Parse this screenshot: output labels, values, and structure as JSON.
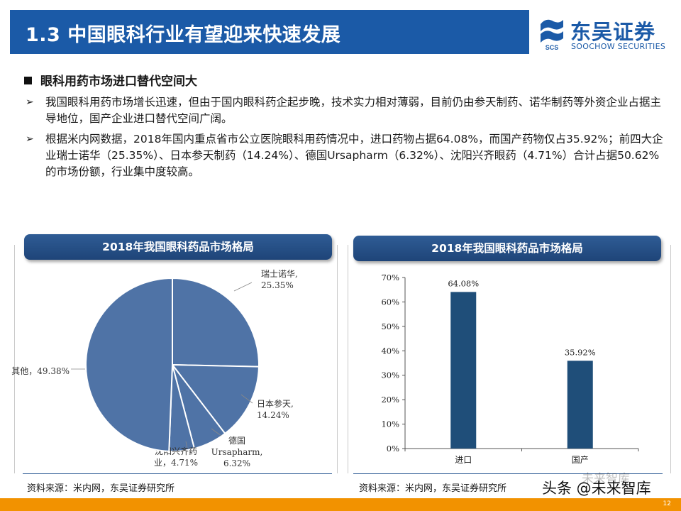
{
  "title": "1.3 中国眼科行业有望迎来快速发展",
  "logo": {
    "cn": "东吴证券",
    "en": "SOOCHOW SECURITIES",
    "mark_text": "SCS"
  },
  "heading": "眼科用药市场进口替代空间大",
  "bullets": [
    "我国眼科用药市场增长迅速，但由于国内眼科药企起步晚，技术实力相对薄弱，目前仍由参天制药、诺华制药等外资企业占据主导地位，国产企业进口替代空间广阔。",
    "根据米内网数据，2018年国内重点省市公立医院眼科用药情况中，进口药物占据64.08%，而国产药物仅占35.92%；前四大企业瑞士诺华（25.35%）、日本参天制药（14.24%）、德国Ursapharm（6.32%）、沈阳兴齐眼药（4.71%）合计占据50.62%的市场份额，行业集中度较高。"
  ],
  "colors": {
    "title_bar": "#1b5aa7",
    "chart_fill": "#4f73a6",
    "bar_fill": "#1f4e79",
    "footer": "#f29200"
  },
  "chart_data": [
    {
      "type": "pie",
      "title": "2018年我国眼科药品市场格局",
      "slices": [
        {
          "label_lines": [
            "瑞士诺华,",
            "25.35%"
          ],
          "value": 25.35
        },
        {
          "label_lines": [
            "日本参天,",
            "14.24%"
          ],
          "value": 14.24
        },
        {
          "label_lines": [
            "德国",
            "Ursapharm,",
            "6.32%"
          ],
          "value": 6.32
        },
        {
          "label_lines": [
            "沈阳兴齐药",
            "业，4.71%"
          ],
          "value": 4.71
        },
        {
          "label_lines": [
            "其他，49.38%"
          ],
          "value": 49.38
        }
      ]
    },
    {
      "type": "bar",
      "title": "2018年我国眼科药品市场格局",
      "categories": [
        "进口",
        "国产"
      ],
      "values": [
        64.08,
        35.92
      ],
      "data_labels": [
        "64.08%",
        "35.92%"
      ],
      "ylim": [
        0,
        70
      ],
      "yticks": [
        "0%",
        "10%",
        "20%",
        "30%",
        "40%",
        "50%",
        "60%",
        "70%"
      ]
    }
  ],
  "sources": [
    "资料来源：米内网，东吴证券研究所",
    "资料来源：米内网，东吴证券研究所"
  ],
  "watermark": "头条 @未来智库",
  "watermark_faint": "未来智库",
  "page_number": "12"
}
